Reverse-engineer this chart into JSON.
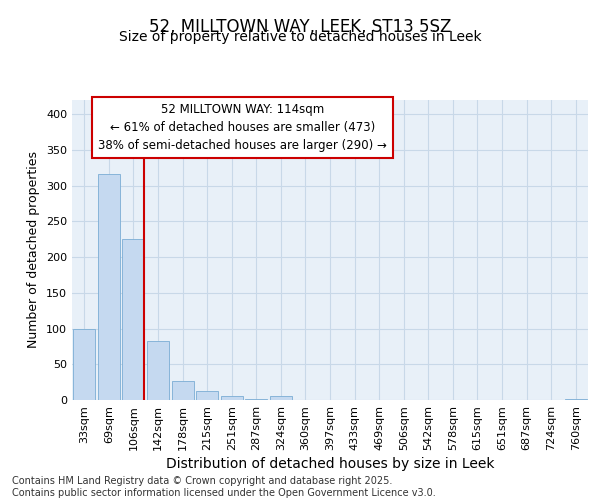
{
  "title_line1": "52, MILLTOWN WAY, LEEK, ST13 5SZ",
  "title_line2": "Size of property relative to detached houses in Leek",
  "xlabel": "Distribution of detached houses by size in Leek",
  "ylabel": "Number of detached properties",
  "bar_labels": [
    "33sqm",
    "69sqm",
    "106sqm",
    "142sqm",
    "178sqm",
    "215sqm",
    "251sqm",
    "287sqm",
    "324sqm",
    "360sqm",
    "397sqm",
    "433sqm",
    "469sqm",
    "506sqm",
    "542sqm",
    "578sqm",
    "615sqm",
    "651sqm",
    "687sqm",
    "724sqm",
    "760sqm"
  ],
  "bar_values": [
    100,
    317,
    226,
    83,
    27,
    13,
    5,
    2,
    5,
    0,
    0,
    0,
    0,
    0,
    0,
    0,
    0,
    0,
    0,
    0,
    2
  ],
  "bar_color": "#c5d9f0",
  "bar_edge_color": "#7badd4",
  "vline_x": 2.0,
  "vline_color": "#cc0000",
  "annotation_text": "52 MILLTOWN WAY: 114sqm\n← 61% of detached houses are smaller (473)\n38% of semi-detached houses are larger (290) →",
  "annotation_box_color": "#cc0000",
  "annotation_bg": "#ffffff",
  "ylim": [
    0,
    420
  ],
  "yticks": [
    0,
    50,
    100,
    150,
    200,
    250,
    300,
    350,
    400
  ],
  "grid_color": "#c8d8e8",
  "background_color": "#e8f0f8",
  "footer_text": "Contains HM Land Registry data © Crown copyright and database right 2025.\nContains public sector information licensed under the Open Government Licence v3.0.",
  "title_fontsize": 12,
  "subtitle_fontsize": 10,
  "xlabel_fontsize": 10,
  "ylabel_fontsize": 9,
  "tick_fontsize": 8,
  "annotation_fontsize": 8.5,
  "footer_fontsize": 7
}
